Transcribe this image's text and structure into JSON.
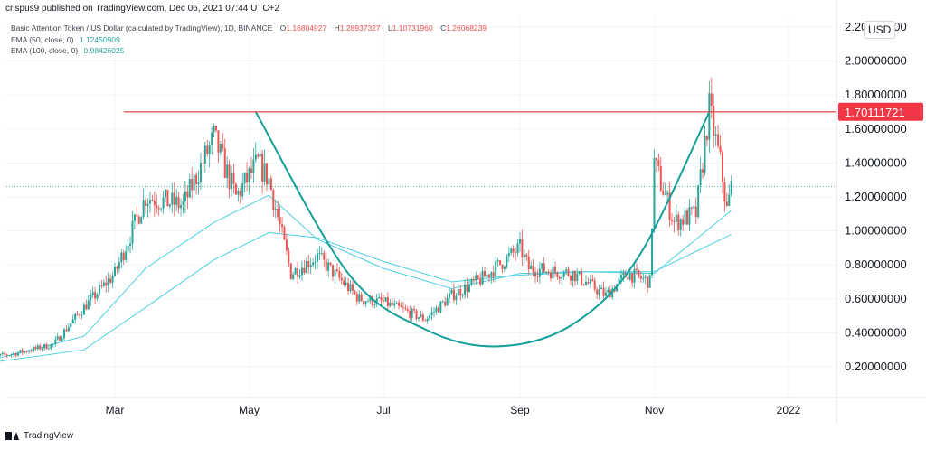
{
  "header": {
    "publisher_text": "crispus9 published on TradingView.com, Dec 06, 2021 07:44 UTC+2"
  },
  "legend": {
    "symbol_title": "Basic Attention Token / US Dollar (calculated by TradingView), 1D, BINANCE",
    "ohlc": {
      "o_label": "O",
      "o_value": "1.16804927",
      "h_label": "H",
      "h_value": "1.28937327",
      "l_label": "L",
      "l_value": "1.10731960",
      "c_label": "C",
      "c_value": "1.26068239"
    },
    "ema50_label": "EMA (50, close, 0)",
    "ema50_value": "1.12450909",
    "ema100_label": "EMA (100, close, 0)",
    "ema100_value": "0.98426025"
  },
  "currency_label": "USD",
  "footer": {
    "brand": "TradingView"
  },
  "colors": {
    "up": "#26a69a",
    "down": "#ef5350",
    "ema": "#4dd0e1",
    "resistance": "#e53935",
    "pattern": "#16a09a",
    "price_tag_bg": "#f23645",
    "grid": "#e0e3eb"
  },
  "chart_data": {
    "type": "candlestick",
    "title": "Basic Attention Token / US Dollar (calculated by TradingView), 1D, BINANCE",
    "x_axis": {
      "tick_labels": [
        "Mar",
        "May",
        "Jul",
        "Sep",
        "Nov",
        "2022"
      ]
    },
    "y_axis": {
      "scale": "linear",
      "range": [
        0.0,
        2.23
      ],
      "tick_labels": [
        "2.20000000",
        "2.00000000",
        "1.80000000",
        "1.60000000",
        "1.40000000",
        "1.20000000",
        "1.00000000",
        "0.80000000",
        "0.60000000",
        "0.40000000",
        "0.20000000"
      ],
      "tick_values": [
        2.2,
        2.0,
        1.8,
        1.6,
        1.4,
        1.2,
        1.0,
        0.8,
        0.6,
        0.4,
        0.2
      ]
    },
    "resistance_line": {
      "value": 1.70111721,
      "label": "1.70111721",
      "start_month": "Mar"
    },
    "last_close_line": 1.26068239,
    "approx_close_path": [
      {
        "date": "2021-01-01",
        "close": 0.25
      },
      {
        "date": "2021-01-15",
        "close": 0.28
      },
      {
        "date": "2021-02-01",
        "close": 0.33
      },
      {
        "date": "2021-02-15",
        "close": 0.55
      },
      {
        "date": "2021-03-01",
        "close": 0.75
      },
      {
        "date": "2021-03-15",
        "close": 1.2
      },
      {
        "date": "2021-04-01",
        "close": 1.15
      },
      {
        "date": "2021-04-15",
        "close": 1.55
      },
      {
        "date": "2021-04-25",
        "close": 1.2
      },
      {
        "date": "2021-05-05",
        "close": 1.4
      },
      {
        "date": "2021-05-10",
        "close": 1.3
      },
      {
        "date": "2021-05-20",
        "close": 0.75
      },
      {
        "date": "2021-06-01",
        "close": 0.85
      },
      {
        "date": "2021-06-20",
        "close": 0.6
      },
      {
        "date": "2021-07-01",
        "close": 0.58
      },
      {
        "date": "2021-07-20",
        "close": 0.48
      },
      {
        "date": "2021-08-01",
        "close": 0.62
      },
      {
        "date": "2021-08-15",
        "close": 0.72
      },
      {
        "date": "2021-09-01",
        "close": 0.9
      },
      {
        "date": "2021-09-05",
        "close": 0.78
      },
      {
        "date": "2021-09-25",
        "close": 0.75
      },
      {
        "date": "2021-10-10",
        "close": 0.62
      },
      {
        "date": "2021-10-20",
        "close": 0.75
      },
      {
        "date": "2021-10-30",
        "close": 0.7
      },
      {
        "date": "2021-11-01",
        "close": 1.4
      },
      {
        "date": "2021-11-10",
        "close": 1.05
      },
      {
        "date": "2021-11-20",
        "close": 1.1
      },
      {
        "date": "2021-11-26",
        "close": 1.72
      },
      {
        "date": "2021-12-01",
        "close": 1.4
      },
      {
        "date": "2021-12-04",
        "close": 1.12
      },
      {
        "date": "2021-12-06",
        "close": 1.26
      }
    ],
    "approx_ema50_path": [
      {
        "date": "2021-01-01",
        "value": 0.23
      },
      {
        "date": "2021-02-15",
        "value": 0.38
      },
      {
        "date": "2021-03-15",
        "value": 0.78
      },
      {
        "date": "2021-04-15",
        "value": 1.05
      },
      {
        "date": "2021-05-10",
        "value": 1.21
      },
      {
        "date": "2021-06-01",
        "value": 0.95
      },
      {
        "date": "2021-07-01",
        "value": 0.78
      },
      {
        "date": "2021-08-01",
        "value": 0.66
      },
      {
        "date": "2021-09-01",
        "value": 0.75
      },
      {
        "date": "2021-10-01",
        "value": 0.76
      },
      {
        "date": "2021-11-01",
        "value": 0.75
      },
      {
        "date": "2021-12-06",
        "value": 1.12
      }
    ],
    "approx_ema100_path": [
      {
        "date": "2021-01-01",
        "value": 0.22
      },
      {
        "date": "2021-02-15",
        "value": 0.3
      },
      {
        "date": "2021-03-15",
        "value": 0.55
      },
      {
        "date": "2021-04-15",
        "value": 0.83
      },
      {
        "date": "2021-05-10",
        "value": 0.99
      },
      {
        "date": "2021-06-01",
        "value": 0.96
      },
      {
        "date": "2021-07-01",
        "value": 0.82
      },
      {
        "date": "2021-08-01",
        "value": 0.7
      },
      {
        "date": "2021-09-01",
        "value": 0.74
      },
      {
        "date": "2021-10-01",
        "value": 0.76
      },
      {
        "date": "2021-11-01",
        "value": 0.76
      },
      {
        "date": "2021-12-06",
        "value": 0.98
      }
    ],
    "cup_pattern": [
      {
        "date": "2021-05-04",
        "value": 1.7
      },
      {
        "date": "2021-06-15",
        "value": 0.75
      },
      {
        "date": "2021-07-20",
        "value": 0.42
      },
      {
        "date": "2021-08-22",
        "value": 0.32
      },
      {
        "date": "2021-09-25",
        "value": 0.45
      },
      {
        "date": "2021-10-25",
        "value": 0.85
      },
      {
        "date": "2021-11-26",
        "value": 1.7
      }
    ],
    "grid": true,
    "legend_position": "top-left"
  }
}
